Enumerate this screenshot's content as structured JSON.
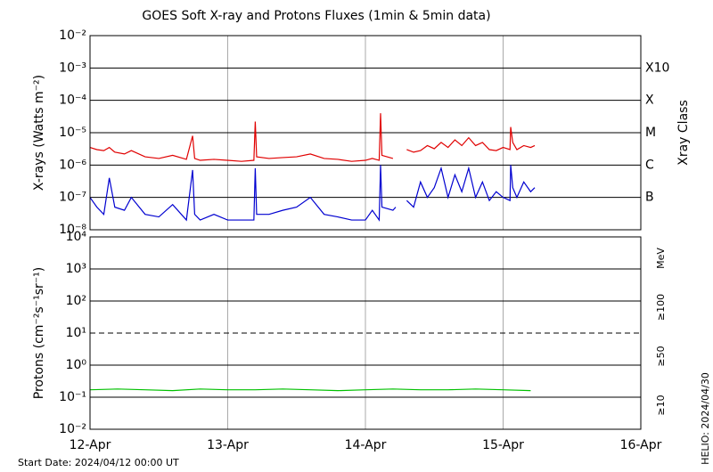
{
  "title": "GOES Soft X-ray and Protons Fluxes   (1min & 5min data)",
  "start_date": "Start Date: 2024/04/12 00:00 UT",
  "stamp": "HELIO: 2024/04/30",
  "chart_data": [
    {
      "type": "line",
      "ylabel": "X-rays (Watts m⁻²)",
      "y2label": "Xray Class",
      "ylog": true,
      "grid": true,
      "xlim": [
        0,
        4
      ],
      "xticks": [
        0,
        1,
        2,
        3,
        4
      ],
      "ylim": [
        1e-08,
        0.01
      ],
      "yticks": [
        {
          "value": 1e-08,
          "label": "10⁻⁸"
        },
        {
          "value": 1e-07,
          "label": "10⁻⁷"
        },
        {
          "value": 1e-06,
          "label": "10⁻⁶"
        },
        {
          "value": 1e-05,
          "label": "10⁻⁵"
        },
        {
          "value": 0.0001,
          "label": "10⁻⁴"
        },
        {
          "value": 0.001,
          "label": "10⁻³"
        },
        {
          "value": 0.01,
          "label": "10⁻²"
        }
      ],
      "class_ticks": [
        {
          "value": 1e-07,
          "label": "B"
        },
        {
          "value": 1e-06,
          "label": "C"
        },
        {
          "value": 1e-05,
          "label": "M"
        },
        {
          "value": 0.0001,
          "label": "X"
        },
        {
          "value": 0.001,
          "label": "X10"
        }
      ],
      "x": [
        0,
        0.05,
        0.1,
        0.14,
        0.18,
        0.25,
        0.3,
        0.4,
        0.5,
        0.6,
        0.7,
        0.745,
        0.76,
        0.8,
        0.9,
        1.0,
        1.1,
        1.19,
        1.2,
        1.21,
        1.3,
        1.4,
        1.5,
        1.6,
        1.7,
        1.8,
        1.9,
        2.0,
        2.05,
        2.1,
        2.11,
        2.12,
        2.2,
        2.22,
        2.26,
        2.3,
        2.35,
        2.4,
        2.45,
        2.5,
        2.55,
        2.6,
        2.65,
        2.7,
        2.75,
        2.8,
        2.85,
        2.9,
        2.95,
        3.0,
        3.05,
        3.055,
        3.07,
        3.1,
        3.15,
        3.2,
        3.23
      ],
      "series": [
        {
          "color": "#e00000",
          "values": [
            3.5e-06,
            3e-06,
            2.8e-06,
            3.5e-06,
            2.5e-06,
            2.2e-06,
            2.8e-06,
            1.8e-06,
            1.6e-06,
            2e-06,
            1.5e-06,
            8e-06,
            1.6e-06,
            1.4e-06,
            1.5e-06,
            1.4e-06,
            1.3e-06,
            1.4e-06,
            2.2e-05,
            1.8e-06,
            1.6e-06,
            1.7e-06,
            1.8e-06,
            2.2e-06,
            1.6e-06,
            1.5e-06,
            1.3e-06,
            1.4e-06,
            1.6e-06,
            1.4e-06,
            4e-05,
            2e-06,
            1.6e-06,
            null,
            null,
            3e-06,
            2.5e-06,
            2.8e-06,
            4e-06,
            3.2e-06,
            5e-06,
            3.5e-06,
            6e-06,
            4e-06,
            7e-06,
            4e-06,
            5e-06,
            3e-06,
            2.8e-06,
            3.5e-06,
            3e-06,
            1.5e-05,
            5e-06,
            3e-06,
            4e-06,
            3.5e-06,
            4e-06
          ]
        },
        {
          "color": "#0000d0",
          "values": [
            1e-07,
            5e-08,
            3e-08,
            4e-07,
            5e-08,
            4e-08,
            1e-07,
            3e-08,
            2.5e-08,
            6e-08,
            2e-08,
            7e-07,
            3e-08,
            2e-08,
            3e-08,
            2e-08,
            2e-08,
            2e-08,
            8e-07,
            3e-08,
            3e-08,
            4e-08,
            5e-08,
            1e-07,
            3e-08,
            2.5e-08,
            2e-08,
            2e-08,
            4e-08,
            2e-08,
            1e-06,
            5e-08,
            4e-08,
            5e-08,
            null,
            8e-08,
            5e-08,
            3e-07,
            1e-07,
            2e-07,
            8e-07,
            1e-07,
            5e-07,
            1.5e-07,
            8e-07,
            1e-07,
            3e-07,
            8e-08,
            1.5e-07,
            1e-07,
            8e-08,
            1e-06,
            2e-07,
            1e-07,
            3e-07,
            1.5e-07,
            2e-07
          ]
        }
      ]
    },
    {
      "type": "line",
      "ylabel": "Protons (cm⁻²s⁻¹sr⁻¹)",
      "y2label": "MeV",
      "ylog": true,
      "grid": true,
      "xlim": [
        0,
        4
      ],
      "xticks": [
        {
          "value": 0,
          "label": "12-Apr"
        },
        {
          "value": 1,
          "label": "13-Apr"
        },
        {
          "value": 2,
          "label": "14-Apr"
        },
        {
          "value": 3,
          "label": "15-Apr"
        },
        {
          "value": 4,
          "label": "16-Apr"
        }
      ],
      "ylim": [
        0.01,
        10000
      ],
      "yticks": [
        {
          "value": 0.01,
          "label": "10⁻²"
        },
        {
          "value": 0.1,
          "label": "10⁻¹"
        },
        {
          "value": 1,
          "label": "10⁰"
        },
        {
          "value": 10,
          "label": "10¹"
        },
        {
          "value": 100,
          "label": "10²"
        },
        {
          "value": 1000,
          "label": "10³"
        },
        {
          "value": 10000,
          "label": "10⁴"
        }
      ],
      "threshold": 10,
      "energy_labels": [
        {
          "label": "≥100",
          "color": "#00c000"
        },
        {
          "label": "≥50",
          "color": "#0000d0"
        },
        {
          "label": "≥10",
          "color": "#e00000"
        }
      ],
      "x": [
        0,
        0.2,
        0.4,
        0.6,
        0.8,
        1.0,
        1.2,
        1.4,
        1.6,
        1.8,
        2.0,
        2.2,
        2.4,
        2.6,
        2.8,
        3.0,
        3.2
      ],
      "series": [
        {
          "color": "#00c000",
          "values": [
            0.17,
            0.18,
            0.17,
            0.16,
            0.18,
            0.17,
            0.17,
            0.18,
            0.17,
            0.16,
            0.17,
            0.18,
            0.17,
            0.17,
            0.18,
            0.17,
            0.16
          ]
        }
      ]
    }
  ]
}
